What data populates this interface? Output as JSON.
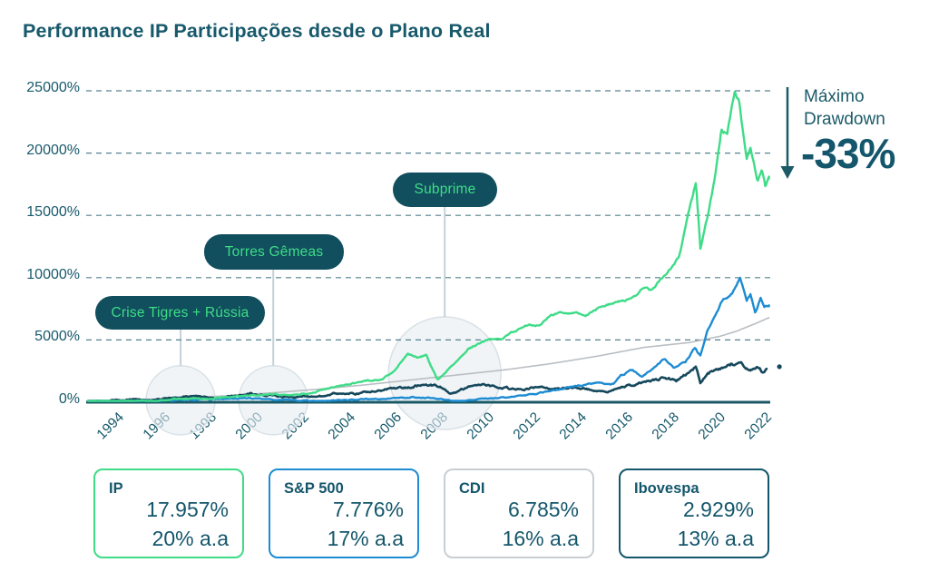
{
  "title": "Performance IP Participações desde o Plano Real",
  "drawdown": {
    "label": "Máximo Drawdown",
    "value": "-33%"
  },
  "colors": {
    "text_teal": "#17596b",
    "badge_bg": "#114f5e",
    "badge_text": "#3edc87",
    "grid": "#54808f",
    "axis": "#1b5a66",
    "circle_fill": "#e6edf1",
    "circle_stroke": "#d8e1e7",
    "connector": "#c4d1d9"
  },
  "legend": {
    "boxes": [
      {
        "label": "IP",
        "total_return": "17.957%",
        "annualized": "20% a.a",
        "color": "#3edc87"
      },
      {
        "label": "S&P 500",
        "total_return": "7.776%",
        "annualized": "17% a.a",
        "color": "#1e8cd2"
      },
      {
        "label": "CDI",
        "total_return": "6.785%",
        "annualized": "16% a.a",
        "color": "#c9ced3"
      },
      {
        "label": "Ibovespa",
        "total_return": "2.929%",
        "annualized": "13% a.a",
        "color": "#14566b"
      }
    ]
  },
  "chart_data": {
    "type": "line",
    "title": "Performance IP Participações desde o Plano Real",
    "xlabel": "",
    "ylabel": "",
    "x_ticks": [
      "1994",
      "1996",
      "1998",
      "2000",
      "2002",
      "2004",
      "2006",
      "2008",
      "2010",
      "2012",
      "2014",
      "2016",
      "2018",
      "2020",
      "2022"
    ],
    "y_ticks": [
      "25000%",
      "20000%",
      "15000%",
      "10000%",
      "5000%",
      "0%"
    ],
    "y_tick_values": [
      25000,
      20000,
      15000,
      10000,
      5000,
      0
    ],
    "x_range": [
      1993,
      2022.9
    ],
    "ylim": [
      0,
      25000
    ],
    "grid": "dashed-horizontal",
    "legend_position": "bottom",
    "annotations": [
      {
        "label": "Crise Tigres + Rússia",
        "year": 1997.0,
        "radius": 38,
        "center_value": 150
      },
      {
        "label": "Torres Gêmeas",
        "year": 2001.0,
        "radius": 38,
        "center_value": 150
      },
      {
        "label": "Subprime",
        "year": 2008.4,
        "radius": 62,
        "center_value": 2330
      }
    ],
    "max_drawdown": {
      "label": "Máximo Drawdown",
      "value": "-33%"
    },
    "series": [
      {
        "name": "IP",
        "color": "#3edc87",
        "final": 17957,
        "points": [
          [
            1993,
            0
          ],
          [
            1994,
            40
          ],
          [
            1995,
            90
          ],
          [
            1996,
            160
          ],
          [
            1997,
            290
          ],
          [
            1997.8,
            360
          ],
          [
            1998.4,
            230
          ],
          [
            1999,
            420
          ],
          [
            2000,
            570
          ],
          [
            2001,
            660
          ],
          [
            2001.8,
            600
          ],
          [
            2002.5,
            700
          ],
          [
            2003,
            950
          ],
          [
            2004,
            1350
          ],
          [
            2005,
            1700
          ],
          [
            2005.7,
            1800
          ],
          [
            2006.3,
            2700
          ],
          [
            2006.8,
            3900
          ],
          [
            2007.2,
            3600
          ],
          [
            2007.6,
            3800
          ],
          [
            2008.1,
            1750
          ],
          [
            2008.6,
            2700
          ],
          [
            2009.4,
            4300
          ],
          [
            2010,
            4800
          ],
          [
            2010.5,
            5100
          ],
          [
            2010.9,
            5100
          ],
          [
            2011.4,
            5700
          ],
          [
            2012,
            6100
          ],
          [
            2012.5,
            6300
          ],
          [
            2013,
            7000
          ],
          [
            2013.6,
            7200
          ],
          [
            2014,
            7300
          ],
          [
            2014.5,
            7000
          ],
          [
            2015,
            7600
          ],
          [
            2016,
            8100
          ],
          [
            2016.5,
            8300
          ],
          [
            2017,
            9200
          ],
          [
            2017.3,
            9000
          ],
          [
            2018,
            10400
          ],
          [
            2018.5,
            11600
          ],
          [
            2018.9,
            14900
          ],
          [
            2019.25,
            17800
          ],
          [
            2019.44,
            12500
          ],
          [
            2019.8,
            15200
          ],
          [
            2020.1,
            18500
          ],
          [
            2020.35,
            22000
          ],
          [
            2020.6,
            21500
          ],
          [
            2020.93,
            25000
          ],
          [
            2021.1,
            24200
          ],
          [
            2021.44,
            19600
          ],
          [
            2021.6,
            20300
          ],
          [
            2021.9,
            17800
          ],
          [
            2022.1,
            18800
          ],
          [
            2022.25,
            17300
          ],
          [
            2022.4,
            17957
          ]
        ]
      },
      {
        "name": "S&P 500",
        "color": "#1e8cd2",
        "final": 7776,
        "points": [
          [
            1993,
            0
          ],
          [
            1995,
            70
          ],
          [
            1997,
            170
          ],
          [
            1999,
            290
          ],
          [
            2000,
            340
          ],
          [
            2001,
            210
          ],
          [
            2002,
            140
          ],
          [
            2003,
            95
          ],
          [
            2004,
            170
          ],
          [
            2005,
            230
          ],
          [
            2006,
            300
          ],
          [
            2007,
            380
          ],
          [
            2008,
            310
          ],
          [
            2009,
            100
          ],
          [
            2009.6,
            170
          ],
          [
            2010,
            260
          ],
          [
            2011,
            400
          ],
          [
            2012,
            560
          ],
          [
            2013,
            900
          ],
          [
            2014,
            1300
          ],
          [
            2015,
            1550
          ],
          [
            2015.7,
            1450
          ],
          [
            2016,
            2100
          ],
          [
            2016.5,
            2600
          ],
          [
            2016.9,
            2050
          ],
          [
            2017.5,
            2900
          ],
          [
            2017.9,
            3500
          ],
          [
            2018.3,
            2770
          ],
          [
            2018.8,
            3300
          ],
          [
            2019.2,
            4400
          ],
          [
            2019.44,
            3700
          ],
          [
            2019.75,
            5870
          ],
          [
            2020.34,
            8000
          ],
          [
            2020.7,
            8600
          ],
          [
            2021.0,
            9300
          ],
          [
            2021.16,
            10000
          ],
          [
            2021.44,
            8050
          ],
          [
            2021.6,
            8600
          ],
          [
            2021.8,
            7200
          ],
          [
            2022.05,
            8300
          ],
          [
            2022.2,
            7600
          ],
          [
            2022.4,
            7776
          ]
        ]
      },
      {
        "name": "CDI",
        "color": "#b9bec3",
        "final": 6785,
        "points": [
          [
            1993,
            0
          ],
          [
            1995,
            140
          ],
          [
            1997,
            320
          ],
          [
            1999,
            520
          ],
          [
            2001,
            760
          ],
          [
            2003,
            1050
          ],
          [
            2005,
            1400
          ],
          [
            2007,
            1800
          ],
          [
            2009,
            2200
          ],
          [
            2011,
            2600
          ],
          [
            2013,
            3100
          ],
          [
            2015,
            3700
          ],
          [
            2017,
            4400
          ],
          [
            2019,
            4800
          ],
          [
            2020.3,
            5300
          ],
          [
            2021,
            5700
          ],
          [
            2021.8,
            6300
          ],
          [
            2022.4,
            6785
          ]
        ]
      },
      {
        "name": "Ibovespa",
        "color": "#16485c",
        "final": 2929,
        "end_dot": [
          2022.85,
          2850
        ],
        "points": [
          [
            1993,
            0
          ],
          [
            1994.2,
            130
          ],
          [
            1995,
            210
          ],
          [
            1995.5,
            160
          ],
          [
            1996.5,
            310
          ],
          [
            1997.4,
            520
          ],
          [
            1998,
            430
          ],
          [
            1998.6,
            240
          ],
          [
            1999.3,
            560
          ],
          [
            2000,
            700
          ],
          [
            2000.6,
            610
          ],
          [
            2001.4,
            460
          ],
          [
            2001.8,
            390
          ],
          [
            2002.3,
            510
          ],
          [
            2002.9,
            360
          ],
          [
            2003.5,
            620
          ],
          [
            2004,
            760
          ],
          [
            2004.5,
            690
          ],
          [
            2005,
            810
          ],
          [
            2006,
            1000
          ],
          [
            2006.8,
            1200
          ],
          [
            2007.5,
            1450
          ],
          [
            2008.2,
            1300
          ],
          [
            2008.7,
            720
          ],
          [
            2009.3,
            1120
          ],
          [
            2010,
            1350
          ],
          [
            2010.5,
            1310
          ],
          [
            2011,
            1160
          ],
          [
            2011.5,
            1000
          ],
          [
            2012,
            1120
          ],
          [
            2012.5,
            1210
          ],
          [
            2013,
            1060
          ],
          [
            2013.6,
            1120
          ],
          [
            2014,
            1160
          ],
          [
            2014.8,
            960
          ],
          [
            2015.4,
            800
          ],
          [
            2016,
            1100
          ],
          [
            2016.5,
            1400
          ],
          [
            2017,
            1600
          ],
          [
            2017.5,
            1820
          ],
          [
            2018,
            1950
          ],
          [
            2018.4,
            1800
          ],
          [
            2018.8,
            2200
          ],
          [
            2019.25,
            2900
          ],
          [
            2019.44,
            1450
          ],
          [
            2019.7,
            2200
          ],
          [
            2020,
            2600
          ],
          [
            2020.4,
            2750
          ],
          [
            2020.8,
            3050
          ],
          [
            2021.2,
            3150
          ],
          [
            2021.6,
            2600
          ],
          [
            2021.9,
            2750
          ],
          [
            2022.1,
            2450
          ],
          [
            2022.3,
            2680
          ]
        ]
      }
    ]
  }
}
